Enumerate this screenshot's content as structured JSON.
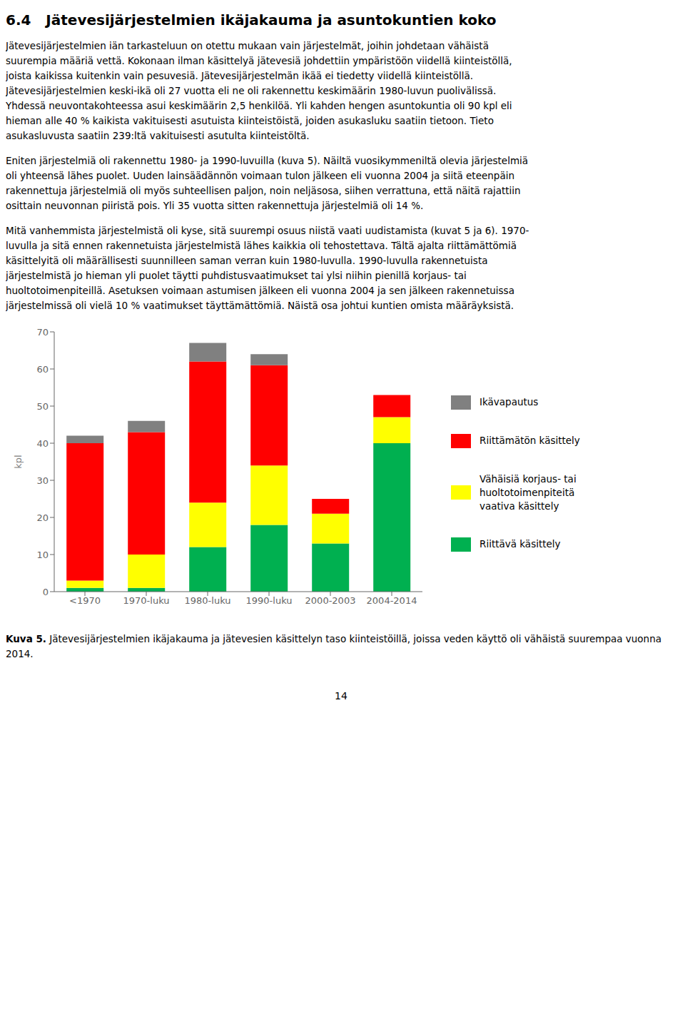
{
  "title": "6.4   Jätevesijärjestelmien ikäjakauma ja asuntokuntien koko",
  "body_text": [
    [
      "Jätevesijärjestelmien iän tarkasteluun on otettu mukaan vain järjestelmät, joihin johdetaan vähäistä",
      "suurempia määriä vettä. Kokonaan ilman käsittelyä jätevesiä johdettiin ympäristöön viidellä kiinteistöllä,",
      "joista kaikissa kuitenkin vain pesuvesiä. Jätevesijärjestelmän ikää ei tiedetty viidellä kiinteistöllä.",
      "Jätevesijärjestelmien keski-ikä oli 27 vuotta eli ne oli rakennettu keskimäärin 1980-luvun puolivälissä.",
      "Yhdessä neuvontakohteessa asui keskimäärin 2,5 henkilöä. Yli kahden hengen asuntokuntia oli 90 kpl eli",
      "hieman alle 40 % kaikista vakituisesti asutuista kiinteistöistä, joiden asukasluku saatiin tietoon. Tieto",
      "asukasluvusta saatiin 239:ltä vakituisesti asutulta kiinteistöltä."
    ],
    [
      "Eniten järjestelmiä oli rakennettu 1980- ja 1990-luvuilla (kuva 5). Näiltä vuosikymmeniltä olevia järjestelmiä",
      "oli yhteensä lähes puolet. Uuden lainsäädännön voimaan tulon jälkeen eli vuonna 2004 ja siitä eteenpäin",
      "rakennettuja järjestelmiä oli myös suhteellisen paljon, noin neljäsosa, siihen verrattuna, että näitä rajattiin",
      "osittain neuvonnan piiristä pois. Yli 35 vuotta sitten rakennettuja järjestelmiä oli 14 %."
    ],
    [
      "Mitä vanhemmista järjestelmistä oli kyse, sitä suurempi osuus niistä vaati uudistamista (kuvat 5 ja 6). 1970-",
      "luvulla ja sitä ennen rakennetuista järjestelmistä lähes kaikkia oli tehostettava. Tältä ajalta riittämättömiä",
      "käsittelyitä oli määrällisesti suunnilleen saman verran kuin 1980-luvulla. 1990-luvulla rakennetuista",
      "järjestelmistä jo hieman yli puolet täytti puhdistusvaatimukset tai ylsi niihin pienillä korjaus- tai",
      "huoltotoimenpiteillä. Asetuksen voimaan astumisen jälkeen eli vuonna 2004 ja sen jälkeen rakennetuissa",
      "järjestelmissä oli vielä 10 % vaatimukset täyttämättömiä. Näistä osa johtui kuntien omista määräyksistä."
    ]
  ],
  "chart_data": {
    "type": "bar",
    "stacked": true,
    "categories": [
      "<1970",
      "1970-luku",
      "1980-luku",
      "1990-luku",
      "2000-2003",
      "2004-2014"
    ],
    "series": [
      {
        "name": "Riittävä käsittely",
        "color": "#00b050",
        "values": [
          1,
          1,
          12,
          18,
          13,
          40
        ]
      },
      {
        "name": "Vähäisiä korjaus- tai\nhuoltotoimenpiteitä\nvaativa käsittely",
        "color": "#ffff00",
        "values": [
          2,
          9,
          12,
          16,
          8,
          7
        ]
      },
      {
        "name": "Riittämätön käsittely",
        "color": "#ff0000",
        "values": [
          37,
          33,
          38,
          27,
          4,
          6
        ]
      },
      {
        "name": "Ikävapautus",
        "color": "#808080",
        "values": [
          2,
          3,
          5,
          3,
          0,
          0
        ]
      }
    ],
    "ylabel": "kpl",
    "ylim": [
      0,
      70
    ],
    "yticks": [
      0,
      10,
      20,
      30,
      40,
      50,
      60,
      70
    ],
    "grid": false,
    "legend": "right"
  },
  "caption_bold": "Kuva 5.",
  "caption": "Jätevesijärjestelmien ikäjakauma ja jätevesien käsittelyn taso kiinteistöillä, joissa veden käyttö oli vähäistä suurempaa vuonna 2014.",
  "page_number": "14"
}
